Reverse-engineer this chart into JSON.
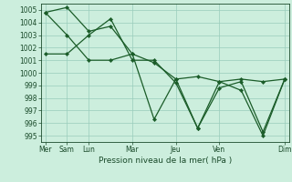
{
  "xlabel": "Pression niveau de la mer( hPa )",
  "bg_color": "#cceedd",
  "grid_color": "#99ccbb",
  "line_color": "#1a5c28",
  "marker_color": "#1a5c28",
  "ylim": [
    994.5,
    1005.5
  ],
  "yticks": [
    995,
    996,
    997,
    998,
    999,
    1000,
    1001,
    1002,
    1003,
    1004,
    1005
  ],
  "xlim": [
    -0.2,
    11.2
  ],
  "x_tick_positions": [
    0,
    1,
    2,
    4,
    6,
    8,
    11
  ],
  "x_tick_labels": [
    "Mer",
    "Sam",
    "Lun",
    "Mar",
    "Jeu",
    "Ven",
    "Dim"
  ],
  "series": [
    [
      1004.8,
      1005.2,
      1003.3,
      1003.7,
      1001.5,
      1000.8,
      999.5,
      999.7,
      999.3,
      999.5,
      999.3,
      999.5
    ],
    [
      1001.5,
      1001.5,
      1003.0,
      1004.3,
      1001.0,
      1001.0,
      999.2,
      995.6,
      999.3,
      998.6,
      995.0,
      999.5
    ],
    [
      1004.8,
      1003.0,
      1001.0,
      1001.0,
      1001.5,
      996.3,
      999.5,
      995.6,
      998.8,
      999.3,
      995.3,
      999.5
    ]
  ]
}
